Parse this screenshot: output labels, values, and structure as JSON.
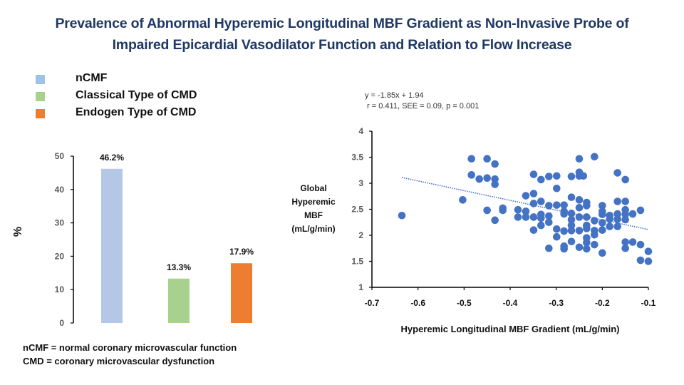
{
  "title": {
    "line1": "Prevalence of Abnormal Hyperemic Longitudinal MBF Gradient as Non-Invasive Probe of",
    "line2": "Impaired Epicardial Vasodilator Function and Relation to Flow Increase"
  },
  "legend": [
    {
      "label": "nCMF",
      "color": "#9dc3e6"
    },
    {
      "label": "Classical Type of CMD",
      "color": "#a9d18e"
    },
    {
      "label": "Endogen Type of CMD",
      "color": "#ed7d31"
    }
  ],
  "footnote": {
    "line1": "nCMF = normal coronary microvascular function",
    "line2": "CMD = coronary microvascular dysfunction"
  },
  "equation": {
    "line1": "y = -1.85x + 1.94",
    "line2": " r = 0.411, SEE = 0.09, p = 0.001"
  },
  "chart_data": [
    {
      "type": "bar",
      "title": "",
      "xlabel": "",
      "ylabel": "%",
      "ylim": [
        0,
        50
      ],
      "yticks": [
        0,
        10,
        20,
        30,
        40,
        50
      ],
      "categories": [
        "nCMF",
        "Classical Type of CMD",
        "Endogen Type of CMD"
      ],
      "values": [
        46.2,
        13.3,
        17.9
      ],
      "data_labels": [
        "46.2%",
        "13.3%",
        "17.9%"
      ],
      "colors": [
        "#b4c7e7",
        "#a9d18e",
        "#ed7d31"
      ],
      "grid": false,
      "legend": "top-left"
    },
    {
      "type": "scatter",
      "title": "",
      "xlabel": "Hyperemic Longitudinal MBF Gradient (mL/g/min)",
      "ylabel": [
        "Global",
        "Hyperemic",
        "MBF",
        "(mL/g/min)"
      ],
      "xlim": [
        -0.7,
        -0.1
      ],
      "ylim": [
        1,
        4
      ],
      "xticks": [
        -0.7,
        -0.6,
        -0.5,
        -0.4,
        -0.3,
        -0.2,
        -0.1
      ],
      "yticks": [
        1,
        1.5,
        2,
        2.5,
        3,
        3.5,
        4
      ],
      "grid": false,
      "point_color": "#4472c4",
      "trendline": {
        "slope": -1.85,
        "intercept": 1.94,
        "x_range": [
          -0.635,
          -0.1
        ],
        "style": "dotted",
        "color": "#4472c4",
        "y_at_start": 3.11,
        "y_at_end": 2.11
      },
      "points": [
        [
          -0.635,
          2.38
        ],
        [
          -0.503,
          2.68
        ],
        [
          -0.484,
          3.47
        ],
        [
          -0.484,
          3.16
        ],
        [
          -0.467,
          3.08
        ],
        [
          -0.45,
          3.47
        ],
        [
          -0.45,
          3.1
        ],
        [
          -0.45,
          2.48
        ],
        [
          -0.433,
          3.37
        ],
        [
          -0.433,
          3.08
        ],
        [
          -0.433,
          2.98
        ],
        [
          -0.433,
          2.29
        ],
        [
          -0.416,
          2.52
        ],
        [
          -0.416,
          2.48
        ],
        [
          -0.383,
          2.49
        ],
        [
          -0.383,
          2.35
        ],
        [
          -0.366,
          2.76
        ],
        [
          -0.366,
          2.46
        ],
        [
          -0.366,
          2.35
        ],
        [
          -0.349,
          3.17
        ],
        [
          -0.349,
          2.8
        ],
        [
          -0.349,
          2.61
        ],
        [
          -0.349,
          2.35
        ],
        [
          -0.349,
          2.1
        ],
        [
          -0.333,
          3.07
        ],
        [
          -0.333,
          2.65
        ],
        [
          -0.333,
          2.4
        ],
        [
          -0.333,
          2.33
        ],
        [
          -0.333,
          2.19
        ],
        [
          -0.316,
          3.13
        ],
        [
          -0.316,
          2.57
        ],
        [
          -0.316,
          2.37
        ],
        [
          -0.316,
          2.25
        ],
        [
          -0.316,
          1.75
        ],
        [
          -0.299,
          3.14
        ],
        [
          -0.299,
          2.9
        ],
        [
          -0.299,
          2.58
        ],
        [
          -0.299,
          2.12
        ],
        [
          -0.299,
          1.97
        ],
        [
          -0.283,
          2.58
        ],
        [
          -0.283,
          2.46
        ],
        [
          -0.283,
          2.41
        ],
        [
          -0.283,
          2.08
        ],
        [
          -0.283,
          1.79
        ],
        [
          -0.283,
          1.74
        ],
        [
          -0.267,
          3.13
        ],
        [
          -0.267,
          2.73
        ],
        [
          -0.267,
          2.42
        ],
        [
          -0.267,
          2.3
        ],
        [
          -0.267,
          2.19
        ],
        [
          -0.267,
          2.09
        ],
        [
          -0.267,
          1.88
        ],
        [
          -0.25,
          3.47
        ],
        [
          -0.25,
          3.21
        ],
        [
          -0.25,
          3.14
        ],
        [
          -0.25,
          2.68
        ],
        [
          -0.25,
          2.53
        ],
        [
          -0.25,
          2.35
        ],
        [
          -0.25,
          2.09
        ],
        [
          -0.25,
          1.77
        ],
        [
          -0.241,
          3.14
        ],
        [
          -0.234,
          2.63
        ],
        [
          -0.234,
          2.57
        ],
        [
          -0.234,
          2.35
        ],
        [
          -0.234,
          2.19
        ],
        [
          -0.234,
          2.13
        ],
        [
          -0.234,
          1.95
        ],
        [
          -0.234,
          1.86
        ],
        [
          -0.234,
          1.74
        ],
        [
          -0.217,
          3.51
        ],
        [
          -0.217,
          2.28
        ],
        [
          -0.217,
          2.09
        ],
        [
          -0.217,
          2.01
        ],
        [
          -0.217,
          1.82
        ],
        [
          -0.2,
          2.57
        ],
        [
          -0.2,
          2.46
        ],
        [
          -0.2,
          2.4
        ],
        [
          -0.2,
          2.24
        ],
        [
          -0.2,
          2.1
        ],
        [
          -0.2,
          1.66
        ],
        [
          -0.184,
          2.38
        ],
        [
          -0.184,
          2.31
        ],
        [
          -0.184,
          2.17
        ],
        [
          -0.167,
          3.2
        ],
        [
          -0.167,
          2.65
        ],
        [
          -0.167,
          2.41
        ],
        [
          -0.167,
          2.31
        ],
        [
          -0.167,
          2.17
        ],
        [
          -0.15,
          3.07
        ],
        [
          -0.15,
          2.65
        ],
        [
          -0.15,
          2.49
        ],
        [
          -0.15,
          2.4
        ],
        [
          -0.15,
          2.3
        ],
        [
          -0.15,
          1.87
        ],
        [
          -0.15,
          1.75
        ],
        [
          -0.134,
          2.41
        ],
        [
          -0.134,
          1.87
        ],
        [
          -0.117,
          2.48
        ],
        [
          -0.117,
          1.82
        ],
        [
          -0.117,
          1.52
        ],
        [
          -0.1,
          1.69
        ],
        [
          -0.1,
          1.5
        ]
      ]
    }
  ]
}
